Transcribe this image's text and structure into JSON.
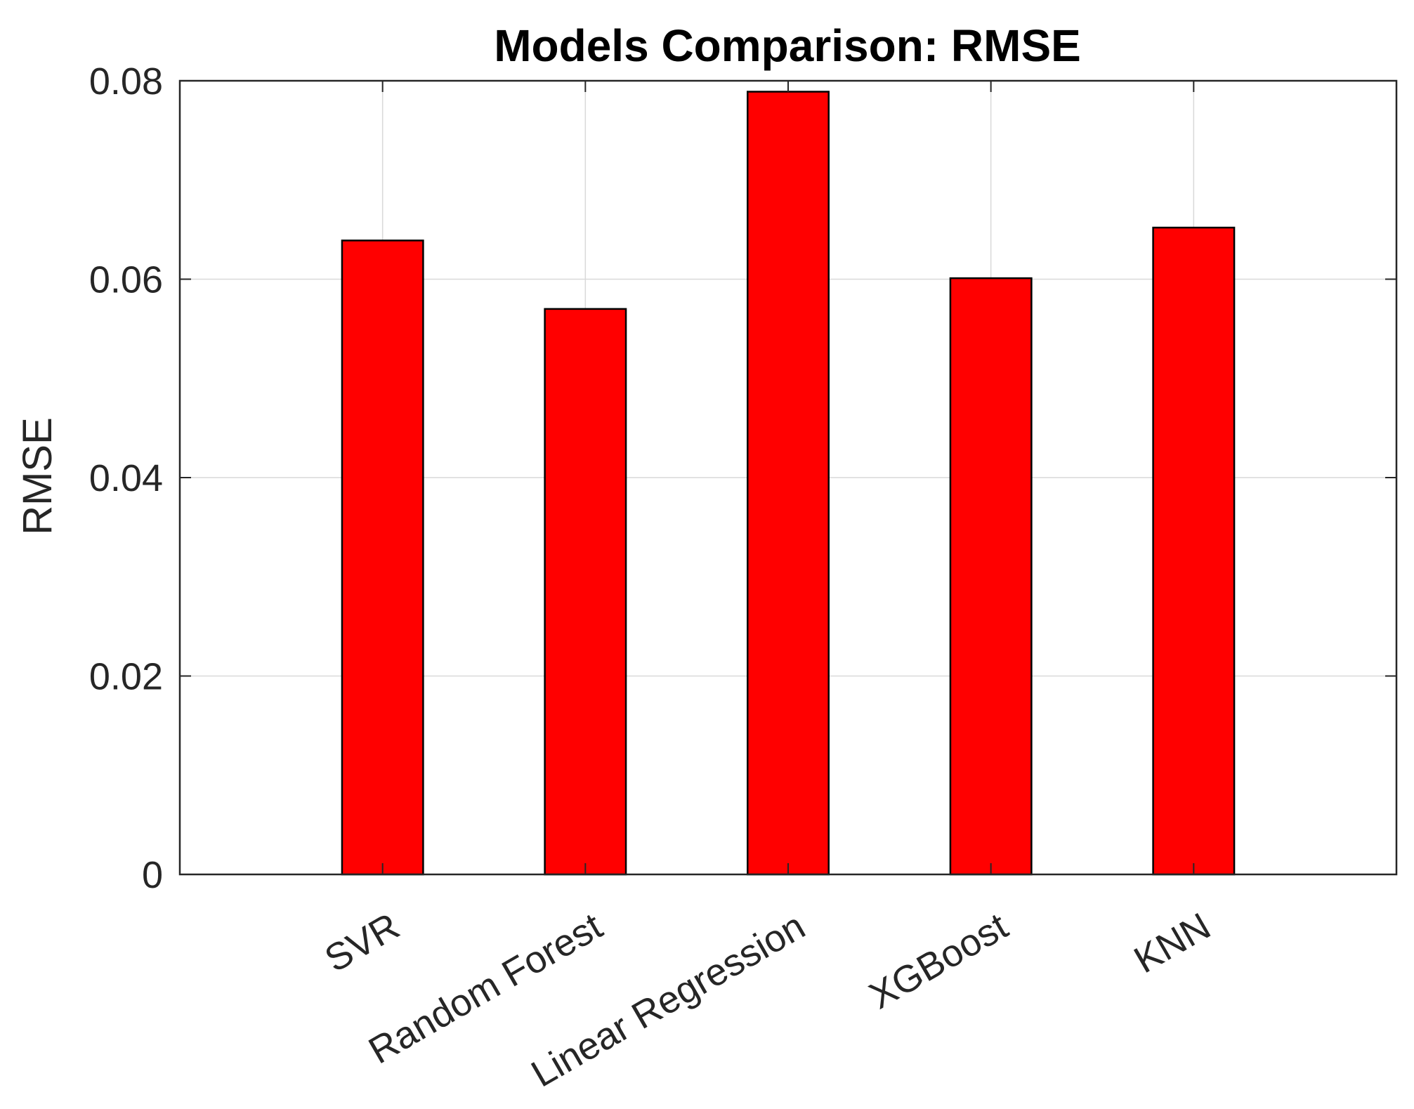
{
  "chart_data": {
    "type": "bar",
    "title": "Models Comparison: RMSE",
    "xlabel": "",
    "ylabel": "RMSE",
    "categories": [
      "SVR",
      "Random Forest",
      "Linear Regression",
      "XGBoost",
      "KNN"
    ],
    "values": [
      0.0639,
      0.057,
      0.0789,
      0.0601,
      0.0652
    ],
    "ylim": [
      0,
      0.08
    ],
    "yticks": [
      "0",
      "0.02",
      "0.04",
      "0.06",
      "0.08"
    ],
    "ytick_values": [
      0,
      0.02,
      0.04,
      0.06,
      0.08
    ],
    "grid": true,
    "bar_color": "#ff0000",
    "edge_color": "#000000"
  }
}
